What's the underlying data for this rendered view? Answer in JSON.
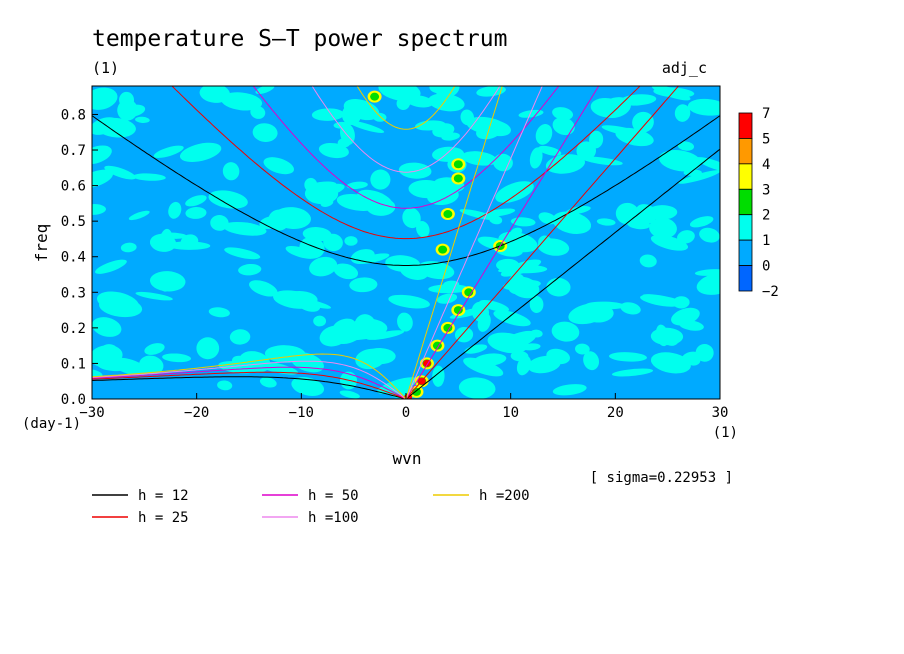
{
  "chart_data": {
    "type": "heatmap",
    "title": "temperature S–T power spectrum",
    "subtitle_left": "(1)",
    "subtitle_right": "adj_c",
    "xlabel": "wvn",
    "ylabel": "freq",
    "x_unit": "(1)",
    "y_unit": "(day-1)",
    "xlim": [
      -30,
      30
    ],
    "ylim": [
      0,
      0.88
    ],
    "x_ticks": [
      {
        "v": -30,
        "label": "−30"
      },
      {
        "v": -20,
        "label": "−20"
      },
      {
        "v": -10,
        "label": "−10"
      },
      {
        "v": 0,
        "label": "0"
      },
      {
        "v": 10,
        "label": "10"
      },
      {
        "v": 20,
        "label": "20"
      },
      {
        "v": 30,
        "label": "30"
      }
    ],
    "y_ticks": [
      {
        "v": 0.0,
        "label": "0.0"
      },
      {
        "v": 0.1,
        "label": "0.1"
      },
      {
        "v": 0.2,
        "label": "0.2"
      },
      {
        "v": 0.3,
        "label": "0.3"
      },
      {
        "v": 0.4,
        "label": "0.4"
      },
      {
        "v": 0.5,
        "label": "0.5"
      },
      {
        "v": 0.6,
        "label": "0.6"
      },
      {
        "v": 0.7,
        "label": "0.7"
      },
      {
        "v": 0.8,
        "label": "0.8"
      }
    ],
    "colorbar": {
      "labels": [
        "7",
        "5",
        "4",
        "3",
        "2",
        "1",
        "0",
        "−2"
      ],
      "colors": [
        "#ff0000",
        "#ff9900",
        "#ffff00",
        "#00dd00",
        "#00ffee",
        "#00aaff",
        "#0066ff"
      ]
    },
    "background_color": "#00aaff",
    "series": [
      {
        "name": "h = 12",
        "h": 12,
        "color": "#000000"
      },
      {
        "name": "h = 25",
        "h": 25,
        "color": "#ee0000"
      },
      {
        "name": "h = 50",
        "h": 50,
        "color": "#dd00cc"
      },
      {
        "name": "h =100",
        "h": 100,
        "color": "#ee88ee"
      },
      {
        "name": "h =200",
        "h": 200,
        "color": "#eecc00"
      }
    ],
    "sigma_note": "[ sigma=0.22953 ]",
    "grid": false,
    "legend_placement": "below"
  }
}
